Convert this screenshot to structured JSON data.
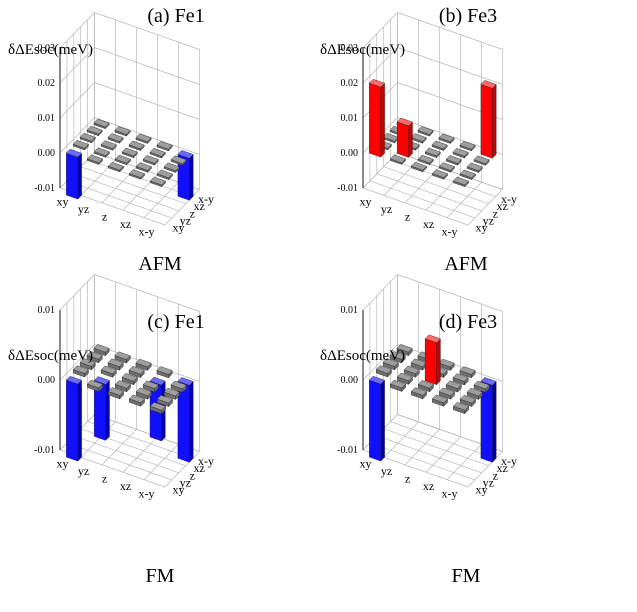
{
  "orbitals": [
    "xy",
    "yz",
    "z²",
    "xz",
    "x²-y²"
  ],
  "orbital_labels": [
    "xy",
    "yz",
    "z",
    "xz",
    "x-y"
  ],
  "colors": {
    "positive_front": "#ff0000",
    "positive_side": "#c70000",
    "positive_top": "#ff6a6a",
    "negative_front": "#1010ff",
    "negative_side": "#0000a8",
    "negative_top": "#6a6aff",
    "negative_light_front": "#9a9ae6",
    "negative_light_side": "#6b6bbf",
    "negative_light_top": "#c4c4f4",
    "zero_top": "#9e9e9e",
    "zero_side": "#6e6e6e",
    "zero_white": "#f4f4f4",
    "grid": "#b8b8b8"
  },
  "chart_data": [
    {
      "type": "bar3d",
      "title": "(a) Fe1",
      "zlabel": "δΔEsoc(meV)",
      "zlim": [
        -0.01,
        0.03
      ],
      "zticks": [
        "-0.01",
        "0.00",
        "0.01",
        "0.02",
        "0.03"
      ],
      "phase_label": "AFM",
      "values": [
        [
          -0.012,
          0.0,
          0.0,
          0.0,
          0.0
        ],
        [
          0.0,
          0.0,
          0.0,
          0.0,
          0.0
        ],
        [
          0.0,
          0.0,
          0.0,
          0.0,
          0.0
        ],
        [
          0.0,
          0.0,
          0.0,
          0.0,
          0.0
        ],
        [
          0.0,
          0.0,
          0.0,
          0.0,
          -0.012
        ]
      ]
    },
    {
      "type": "bar3d",
      "title": "(b) Fe3",
      "zlabel": "δΔEsoc(meV)",
      "zlim": [
        -0.01,
        0.03
      ],
      "zticks": [
        "-0.01",
        "0.00",
        "0.01",
        "0.02",
        "0.03"
      ],
      "phase_label": "AFM",
      "values": [
        [
          0.02,
          0.0,
          0.0,
          0.0,
          0.0
        ],
        [
          0.0,
          0.009,
          0.0,
          0.0,
          0.0
        ],
        [
          0.0,
          0.0,
          0.0,
          0.0,
          0.0
        ],
        [
          0.0,
          0.0,
          0.0,
          0.0,
          0.0
        ],
        [
          0.0,
          0.0,
          0.0,
          0.0,
          0.02
        ]
      ]
    },
    {
      "type": "bar3d",
      "title": "(c) Fe1",
      "zlabel": "δΔEsoc(meV)",
      "zlim": [
        -0.01,
        0.01
      ],
      "zticks": [
        "-0.01",
        "0.00",
        "0.01"
      ],
      "phase_label": "FM",
      "values": [
        [
          -0.011,
          0.0,
          0.0,
          0.0,
          0.0
        ],
        [
          0.0,
          -0.008,
          0.0,
          0.0,
          0.0
        ],
        [
          0.0,
          0.0,
          0.0,
          0.0,
          0.0
        ],
        [
          0.0,
          0.0,
          0.0,
          -0.008,
          0.0
        ],
        [
          0.0,
          0.0,
          0.0,
          0.0,
          -0.011
        ]
      ]
    },
    {
      "type": "bar3d",
      "title": "(d) Fe3",
      "zlabel": "δΔEsoc(meV)",
      "zlim": [
        -0.01,
        0.01
      ],
      "zticks": [
        "-0.01",
        "0.00",
        "0.01"
      ],
      "phase_label": "FM",
      "values": [
        [
          -0.011,
          0.0,
          0.0,
          0.0,
          0.0
        ],
        [
          0.0,
          0.0,
          0.0,
          0.0,
          0.0
        ],
        [
          0.0,
          0.0,
          0.006,
          0.0,
          0.0
        ],
        [
          0.0,
          0.0,
          0.0,
          0.0,
          0.0
        ],
        [
          0.0,
          0.0,
          0.0,
          0.0,
          -0.011
        ]
      ]
    }
  ]
}
